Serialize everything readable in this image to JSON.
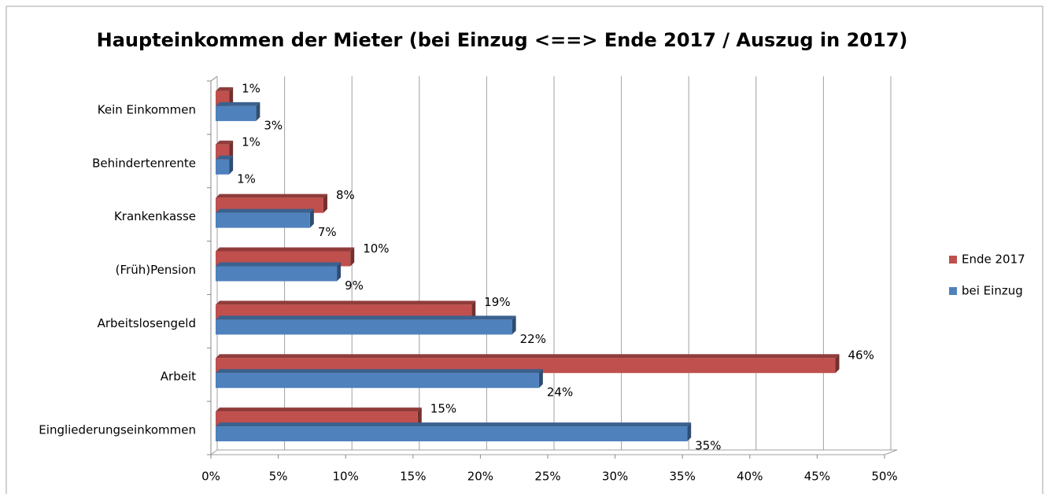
{
  "chart_data": {
    "type": "bar",
    "orientation": "horizontal",
    "title": "Haupteinkommen der Mieter (bei Einzug <==> Ende 2017 / Auszug in 2017)",
    "categories": [
      "Eingliederungseinkommen",
      "Arbeit",
      "Arbeitslosengeld",
      "(Früh)Pension",
      "Krankenkasse",
      "Behindertenrente",
      "Kein Einkommen"
    ],
    "series": [
      {
        "name": "Ende 2017",
        "color": "#c0504d",
        "values": [
          15,
          46,
          19,
          10,
          8,
          1,
          1
        ],
        "value_labels": [
          "15%",
          "46%",
          "19%",
          "10%",
          "8%",
          "1%",
          "1%"
        ]
      },
      {
        "name": "bei Einzug",
        "color": "#4f81bd",
        "values": [
          35,
          24,
          22,
          9,
          7,
          1,
          3
        ],
        "value_labels": [
          "35%",
          "24%",
          "22%",
          "9%",
          "7%",
          "1%",
          "3%"
        ]
      }
    ],
    "xlim": [
      0,
      50
    ],
    "xticks": [
      {
        "value": 0,
        "label": "0%"
      },
      {
        "value": 5,
        "label": "5%"
      },
      {
        "value": 10,
        "label": "10%"
      },
      {
        "value": 15,
        "label": "15%"
      },
      {
        "value": 20,
        "label": "20%"
      },
      {
        "value": 25,
        "label": "25%"
      },
      {
        "value": 30,
        "label": "30%"
      },
      {
        "value": 35,
        "label": "35%"
      },
      {
        "value": 40,
        "label": "40%"
      },
      {
        "value": 45,
        "label": "45%"
      },
      {
        "value": 50,
        "label": "50%"
      }
    ],
    "grid": true,
    "legend": "right"
  }
}
